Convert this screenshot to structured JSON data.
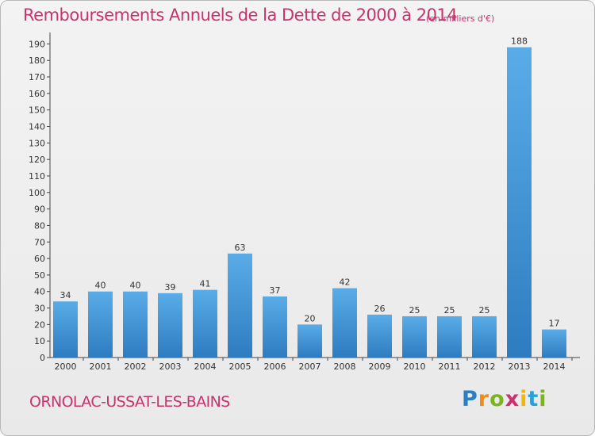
{
  "title": "Remboursements Annuels de la Dette de 2000 à 2014",
  "unit": "(en milliers d'€)",
  "commune": "ORNOLAC-USSAT-LES-BAINS",
  "logo_text": "Proxiti",
  "colors": {
    "accent": "#c8336e",
    "bar_top": "#5aace8",
    "bar_bottom": "#2e7cc0"
  },
  "chart_data": {
    "type": "bar",
    "title": "Remboursements Annuels de la Dette de 2000 à 2014",
    "categories": [
      "2000",
      "2001",
      "2002",
      "2003",
      "2004",
      "2005",
      "2006",
      "2007",
      "2008",
      "2009",
      "2010",
      "2011",
      "2012",
      "2013",
      "2014"
    ],
    "values": [
      34,
      40,
      40,
      39,
      41,
      63,
      37,
      20,
      42,
      26,
      25,
      25,
      25,
      188,
      17
    ],
    "yticks": [
      0,
      10,
      20,
      30,
      40,
      50,
      60,
      70,
      80,
      90,
      100,
      110,
      120,
      130,
      140,
      150,
      160,
      170,
      180,
      190
    ],
    "ylim": [
      0,
      195
    ],
    "xlabel": "",
    "ylabel": "",
    "grid": false,
    "legend": "none"
  }
}
